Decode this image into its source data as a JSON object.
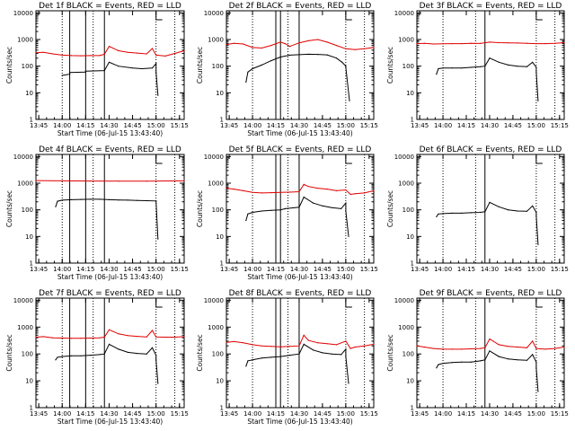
{
  "chart_data": [
    {
      "type": "line",
      "title": "Det 1f BLACK = Events, RED = LLD",
      "xlabel": "Start Time (06-Jul-15 13:43:40)",
      "ylabel": "Counts/sec",
      "xlim": [
        13.72,
        15.3
      ],
      "ylim": [
        1,
        12000
      ],
      "yscale": "log",
      "xticks": [
        "13:45",
        "14:00",
        "14:15",
        "14:30",
        "14:45",
        "15:00",
        "15:15"
      ],
      "yticks": [
        "1",
        "10",
        "100",
        "1000",
        "10000"
      ],
      "series": [
        {
          "name": "BLACK = Events",
          "color": "#000000",
          "x": [
            14.0,
            14.08,
            14.08,
            14.25,
            14.25,
            14.45,
            14.5,
            14.6,
            14.75,
            14.85,
            14.96,
            15.0,
            15.0,
            15.02
          ],
          "y": [
            45,
            50,
            58,
            60,
            65,
            68,
            140,
            100,
            85,
            80,
            85,
            125,
            60,
            8
          ]
        },
        {
          "name": "RED = LLD",
          "color": "#e00000",
          "x": [
            13.72,
            13.8,
            13.9,
            14.0,
            14.1,
            14.2,
            14.3,
            14.4,
            14.45,
            14.5,
            14.6,
            14.7,
            14.8,
            14.9,
            14.96,
            15.0,
            15.1,
            15.2,
            15.3
          ],
          "y": [
            320,
            330,
            290,
            260,
            250,
            245,
            250,
            250,
            280,
            550,
            380,
            330,
            310,
            290,
            460,
            260,
            240,
            300,
            380
          ]
        }
      ],
      "solid_vlines": [
        14.08,
        14.25,
        14.45
      ],
      "dotted_vlines": [
        14.0,
        14.33,
        15.0,
        15.2
      ],
      "bracket_x": 15.0
    },
    {
      "type": "line",
      "title": "Det 2f BLACK = Events, RED = LLD",
      "xlabel": "Start Time (06-Jul-15 13:43:40)",
      "ylabel": "Counts/sec",
      "xlim": [
        13.72,
        15.3
      ],
      "ylim": [
        1,
        12000
      ],
      "yscale": "log",
      "xticks": [
        "13:45",
        "14:00",
        "14:15",
        "14:30",
        "14:45",
        "15:00",
        "15:15"
      ],
      "yticks": [
        "1",
        "10",
        "100",
        "1000",
        "10000"
      ],
      "series": [
        {
          "name": "BLACK = Events",
          "color": "#000000",
          "x": [
            13.93,
            13.95,
            14.0,
            14.1,
            14.2,
            14.3,
            14.4,
            14.5,
            14.6,
            14.7,
            14.8,
            14.9,
            14.96,
            15.0,
            15.0,
            15.04
          ],
          "y": [
            25,
            60,
            80,
            110,
            160,
            220,
            260,
            270,
            280,
            275,
            265,
            200,
            140,
            100,
            90,
            5
          ]
        },
        {
          "name": "RED = LLD",
          "color": "#e00000",
          "x": [
            13.72,
            13.8,
            13.9,
            14.0,
            14.1,
            14.2,
            14.3,
            14.35,
            14.4,
            14.5,
            14.6,
            14.7,
            14.8,
            14.9,
            15.0,
            15.1,
            15.2,
            15.3
          ],
          "y": [
            650,
            720,
            680,
            500,
            480,
            600,
            800,
            700,
            550,
            750,
            900,
            1000,
            800,
            600,
            450,
            420,
            450,
            500
          ]
        }
      ],
      "solid_vlines": [
        14.25,
        14.3,
        14.5
      ],
      "dotted_vlines": [
        14.0,
        14.38,
        15.0,
        15.2
      ],
      "bracket_x": 15.0
    },
    {
      "type": "line",
      "title": "Det 3f BLACK = Events, RED = LLD",
      "xlabel": "",
      "ylabel": "Counts/sec",
      "xlim": [
        13.72,
        15.3
      ],
      "ylim": [
        1,
        12000
      ],
      "yscale": "log",
      "xticks": [
        "13:45",
        "14:00",
        "14:15",
        "14:30",
        "14:45",
        "15:00",
        "15:15"
      ],
      "yticks": [
        "1",
        "10",
        "100",
        "1000",
        "10000"
      ],
      "series": [
        {
          "name": "BLACK = Events",
          "color": "#000000",
          "x": [
            13.93,
            13.95,
            14.0,
            14.1,
            14.2,
            14.3,
            14.4,
            14.45,
            14.5,
            14.6,
            14.7,
            14.8,
            14.9,
            14.96,
            15.0,
            15.0,
            15.02
          ],
          "y": [
            50,
            80,
            85,
            85,
            85,
            90,
            95,
            100,
            200,
            140,
            110,
            100,
            95,
            140,
            90,
            60,
            5
          ]
        },
        {
          "name": "RED = LLD",
          "color": "#e00000",
          "x": [
            13.72,
            13.8,
            13.9,
            14.0,
            14.1,
            14.2,
            14.3,
            14.4,
            14.5,
            14.6,
            14.7,
            14.8,
            14.9,
            15.0,
            15.1,
            15.2,
            15.3
          ],
          "y": [
            700,
            720,
            680,
            690,
            700,
            700,
            720,
            710,
            800,
            760,
            750,
            740,
            720,
            700,
            700,
            720,
            760
          ]
        }
      ],
      "solid_vlines": [
        14.45
      ],
      "dotted_vlines": [
        14.0,
        14.35,
        15.0,
        15.2
      ],
      "bracket_x": 15.0
    },
    {
      "type": "line",
      "title": "Det 4f BLACK = Events, RED = LLD",
      "xlabel": "Start Time (06-Jul-15 13:43:40)",
      "ylabel": "Counts/sec",
      "xlim": [
        13.72,
        15.3
      ],
      "ylim": [
        1,
        12000
      ],
      "yscale": "log",
      "xticks": [
        "13:45",
        "14:00",
        "14:15",
        "14:30",
        "14:45",
        "15:00",
        "15:15"
      ],
      "yticks": [
        "1",
        "10",
        "100",
        "1000",
        "10000"
      ],
      "series": [
        {
          "name": "BLACK = Events",
          "color": "#000000",
          "x": [
            13.93,
            13.95,
            14.0,
            14.1,
            14.2,
            14.3,
            14.4,
            14.5,
            14.6,
            14.7,
            14.8,
            14.9,
            15.0,
            15.0,
            15.02
          ],
          "y": [
            130,
            210,
            230,
            240,
            245,
            250,
            250,
            240,
            235,
            230,
            225,
            220,
            215,
            210,
            8
          ]
        },
        {
          "name": "RED = LLD",
          "color": "#e00000",
          "x": [
            13.72,
            14.0,
            14.3,
            14.6,
            14.9,
            15.3
          ],
          "y": [
            1250,
            1220,
            1210,
            1200,
            1200,
            1220
          ]
        }
      ],
      "solid_vlines": [
        14.08,
        14.25,
        14.45
      ],
      "dotted_vlines": [
        14.0,
        14.33,
        15.0,
        15.2
      ],
      "bracket_x": 15.0
    },
    {
      "type": "line",
      "title": "Det 5f BLACK = Events, RED = LLD",
      "xlabel": "Start Time (06-Jul-15 13:43:40)",
      "ylabel": "Counts/sec",
      "xlim": [
        13.72,
        15.3
      ],
      "ylim": [
        1,
        12000
      ],
      "yscale": "log",
      "xticks": [
        "13:45",
        "14:00",
        "14:15",
        "14:30",
        "14:45",
        "15:00",
        "15:15"
      ],
      "yticks": [
        "1",
        "10",
        "100",
        "1000",
        "10000"
      ],
      "series": [
        {
          "name": "BLACK = Events",
          "color": "#000000",
          "x": [
            13.93,
            13.95,
            14.0,
            14.1,
            14.2,
            14.3,
            14.35,
            14.5,
            14.55,
            14.65,
            14.75,
            14.85,
            14.95,
            15.0,
            15.0,
            15.03
          ],
          "y": [
            40,
            70,
            80,
            90,
            95,
            100,
            110,
            125,
            300,
            180,
            140,
            120,
            110,
            180,
            90,
            10
          ]
        },
        {
          "name": "RED = LLD",
          "color": "#e00000",
          "x": [
            13.72,
            13.8,
            13.9,
            14.0,
            14.1,
            14.2,
            14.3,
            14.4,
            14.5,
            14.55,
            14.6,
            14.7,
            14.8,
            14.9,
            15.0,
            15.05,
            15.1,
            15.2,
            15.3
          ],
          "y": [
            650,
            600,
            520,
            450,
            430,
            440,
            450,
            460,
            480,
            900,
            750,
            650,
            600,
            520,
            560,
            380,
            400,
            430,
            520
          ]
        }
      ],
      "solid_vlines": [
        14.25,
        14.3,
        14.5
      ],
      "dotted_vlines": [
        14.0,
        14.38,
        15.0,
        15.2
      ],
      "bracket_x": 15.0
    },
    {
      "type": "line",
      "title": "Det 6f BLACK = Events, RED = LLD",
      "xlabel": "",
      "ylabel": "Counts/sec",
      "xlim": [
        13.72,
        15.3
      ],
      "ylim": [
        1,
        12000
      ],
      "yscale": "log",
      "xticks": [
        "13:45",
        "14:00",
        "14:15",
        "14:30",
        "14:45",
        "15:00",
        "15:15"
      ],
      "yticks": [
        "1",
        "10",
        "100",
        "1000",
        "10000"
      ],
      "series": [
        {
          "name": "BLACK = Events",
          "color": "#000000",
          "x": [
            13.93,
            13.95,
            14.0,
            14.1,
            14.2,
            14.3,
            14.4,
            14.45,
            14.5,
            14.6,
            14.7,
            14.8,
            14.9,
            14.96,
            15.0,
            15.0,
            15.02
          ],
          "y": [
            55,
            70,
            72,
            75,
            75,
            78,
            80,
            85,
            190,
            130,
            100,
            90,
            88,
            140,
            80,
            60,
            5
          ]
        }
      ],
      "solid_vlines": [
        14.45
      ],
      "dotted_vlines": [
        14.0,
        14.35,
        15.0,
        15.2
      ],
      "bracket_x": 15.0
    },
    {
      "type": "line",
      "title": "Det 7f BLACK = Events, RED = LLD",
      "xlabel": "Start Time (06-Jul-15 13:43:40)",
      "ylabel": "Counts/sec",
      "xlim": [
        13.72,
        15.3
      ],
      "ylim": [
        1,
        12000
      ],
      "yscale": "log",
      "xticks": [
        "13:45",
        "14:00",
        "14:15",
        "14:30",
        "14:45",
        "15:00",
        "15:15"
      ],
      "yticks": [
        "1",
        "10",
        "100",
        "1000",
        "10000"
      ],
      "series": [
        {
          "name": "BLACK = Events",
          "color": "#000000",
          "x": [
            13.93,
            13.95,
            14.0,
            14.1,
            14.2,
            14.3,
            14.4,
            14.45,
            14.5,
            14.6,
            14.7,
            14.8,
            14.9,
            14.96,
            15.0,
            15.0,
            15.02
          ],
          "y": [
            60,
            75,
            80,
            85,
            85,
            90,
            95,
            100,
            230,
            150,
            115,
            105,
            100,
            170,
            90,
            60,
            8
          ]
        },
        {
          "name": "RED = LLD",
          "color": "#e00000",
          "x": [
            13.72,
            13.8,
            13.9,
            14.0,
            14.1,
            14.2,
            14.3,
            14.4,
            14.45,
            14.5,
            14.6,
            14.7,
            14.8,
            14.9,
            14.96,
            15.0,
            15.1,
            15.2,
            15.3
          ],
          "y": [
            420,
            440,
            400,
            390,
            380,
            385,
            390,
            400,
            420,
            800,
            560,
            480,
            450,
            430,
            750,
            430,
            420,
            420,
            440
          ]
        }
      ],
      "solid_vlines": [
        14.08,
        14.25,
        14.45
      ],
      "dotted_vlines": [
        14.0,
        14.33,
        15.0,
        15.2
      ],
      "bracket_x": 15.0
    },
    {
      "type": "line",
      "title": "Det 8f BLACK = Events, RED = LLD",
      "xlabel": "Start Time (06-Jul-15 13:43:40)",
      "ylabel": "Counts/sec",
      "xlim": [
        13.72,
        15.3
      ],
      "ylim": [
        1,
        12000
      ],
      "yscale": "log",
      "xticks": [
        "13:45",
        "14:00",
        "14:15",
        "14:30",
        "14:45",
        "15:00",
        "15:15"
      ],
      "yticks": [
        "1",
        "10",
        "100",
        "1000",
        "10000"
      ],
      "series": [
        {
          "name": "BLACK = Events",
          "color": "#000000",
          "x": [
            13.93,
            13.95,
            14.0,
            14.1,
            14.2,
            14.3,
            14.4,
            14.5,
            14.55,
            14.65,
            14.75,
            14.85,
            14.95,
            15.0,
            15.0,
            15.03
          ],
          "y": [
            35,
            55,
            60,
            70,
            75,
            80,
            90,
            100,
            230,
            140,
            110,
            100,
            95,
            150,
            80,
            8
          ]
        },
        {
          "name": "RED = LLD",
          "color": "#e00000",
          "x": [
            13.72,
            13.8,
            13.9,
            14.0,
            14.1,
            14.2,
            14.3,
            14.4,
            14.5,
            14.55,
            14.6,
            14.7,
            14.8,
            14.9,
            15.0,
            15.05,
            15.1,
            15.2,
            15.3
          ],
          "y": [
            270,
            290,
            260,
            220,
            200,
            190,
            185,
            190,
            200,
            500,
            320,
            260,
            240,
            220,
            300,
            160,
            180,
            200,
            230
          ]
        }
      ],
      "solid_vlines": [
        14.25,
        14.3,
        14.5
      ],
      "dotted_vlines": [
        14.0,
        14.38,
        15.0,
        15.2
      ],
      "bracket_x": 15.0
    },
    {
      "type": "line",
      "title": "Det 9f BLACK = Events, RED = LLD",
      "xlabel": "",
      "ylabel": "Counts/sec",
      "xlim": [
        13.72,
        15.3
      ],
      "ylim": [
        1,
        12000
      ],
      "yscale": "log",
      "xticks": [
        "13:45",
        "14:00",
        "14:15",
        "14:30",
        "14:45",
        "15:00",
        "15:15"
      ],
      "yticks": [
        "1",
        "10",
        "100",
        "1000",
        "10000"
      ],
      "series": [
        {
          "name": "BLACK = Events",
          "color": "#000000",
          "x": [
            13.93,
            13.95,
            14.0,
            14.1,
            14.2,
            14.3,
            14.4,
            14.45,
            14.5,
            14.6,
            14.7,
            14.8,
            14.9,
            14.96,
            15.0,
            15.0,
            15.02
          ],
          "y": [
            30,
            40,
            45,
            48,
            50,
            50,
            55,
            60,
            130,
            80,
            65,
            60,
            58,
            95,
            50,
            30,
            4
          ]
        },
        {
          "name": "RED = LLD",
          "color": "#e00000",
          "x": [
            13.72,
            13.8,
            13.9,
            14.0,
            14.1,
            14.2,
            14.3,
            14.4,
            14.45,
            14.5,
            14.6,
            14.7,
            14.8,
            14.9,
            14.96,
            15.0,
            15.1,
            15.2,
            15.3
          ],
          "y": [
            200,
            180,
            160,
            150,
            150,
            150,
            155,
            160,
            170,
            360,
            220,
            190,
            180,
            170,
            300,
            160,
            150,
            160,
            180
          ]
        }
      ],
      "solid_vlines": [
        14.45
      ],
      "dotted_vlines": [
        14.0,
        14.35,
        15.0,
        15.2
      ],
      "bracket_x": 15.0
    }
  ]
}
